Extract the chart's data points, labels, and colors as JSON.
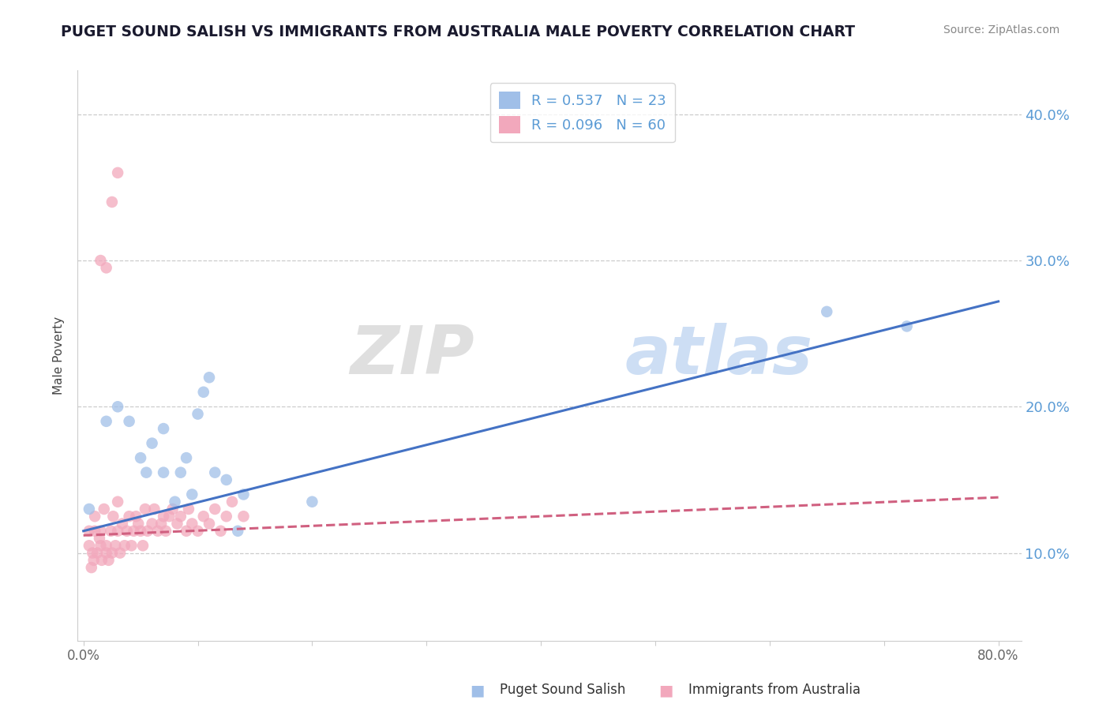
{
  "title": "PUGET SOUND SALISH VS IMMIGRANTS FROM AUSTRALIA MALE POVERTY CORRELATION CHART",
  "source": "Source: ZipAtlas.com",
  "ylabel": "Male Poverty",
  "y_ticks": [
    0.1,
    0.2,
    0.3,
    0.4
  ],
  "y_tick_labels": [
    "10.0%",
    "20.0%",
    "30.0%",
    "40.0%"
  ],
  "xlim": [
    -0.005,
    0.82
  ],
  "ylim": [
    0.04,
    0.43
  ],
  "R_blue": 0.537,
  "N_blue": 23,
  "R_pink": 0.096,
  "N_pink": 60,
  "blue_color": "#a0bfe8",
  "pink_color": "#f2a8bc",
  "blue_line_color": "#4472C4",
  "pink_line_color": "#d06080",
  "watermark_zip": "ZIP",
  "watermark_atlas": "atlas",
  "legend_label_blue": "Puget Sound Salish",
  "legend_label_pink": "Immigrants from Australia",
  "blue_scatter_x": [
    0.005,
    0.02,
    0.03,
    0.04,
    0.05,
    0.055,
    0.06,
    0.07,
    0.07,
    0.08,
    0.085,
    0.09,
    0.095,
    0.1,
    0.105,
    0.11,
    0.115,
    0.125,
    0.135,
    0.14,
    0.2,
    0.65,
    0.72
  ],
  "blue_scatter_y": [
    0.13,
    0.19,
    0.2,
    0.19,
    0.165,
    0.155,
    0.175,
    0.155,
    0.185,
    0.135,
    0.155,
    0.165,
    0.14,
    0.195,
    0.21,
    0.22,
    0.155,
    0.15,
    0.115,
    0.14,
    0.135,
    0.265,
    0.255
  ],
  "pink_scatter_x": [
    0.005,
    0.005,
    0.007,
    0.008,
    0.009,
    0.01,
    0.01,
    0.012,
    0.014,
    0.015,
    0.015,
    0.016,
    0.018,
    0.02,
    0.02,
    0.022,
    0.024,
    0.025,
    0.026,
    0.028,
    0.03,
    0.03,
    0.032,
    0.034,
    0.036,
    0.038,
    0.04,
    0.042,
    0.044,
    0.046,
    0.048,
    0.05,
    0.052,
    0.054,
    0.056,
    0.06,
    0.062,
    0.065,
    0.068,
    0.07,
    0.072,
    0.075,
    0.078,
    0.082,
    0.085,
    0.09,
    0.092,
    0.095,
    0.1,
    0.105,
    0.11,
    0.115,
    0.12,
    0.125,
    0.13,
    0.14,
    0.015,
    0.02,
    0.025,
    0.03
  ],
  "pink_scatter_y": [
    0.105,
    0.115,
    0.09,
    0.1,
    0.095,
    0.115,
    0.125,
    0.1,
    0.11,
    0.105,
    0.115,
    0.095,
    0.13,
    0.1,
    0.105,
    0.095,
    0.115,
    0.1,
    0.125,
    0.105,
    0.115,
    0.135,
    0.1,
    0.12,
    0.105,
    0.115,
    0.125,
    0.105,
    0.115,
    0.125,
    0.12,
    0.115,
    0.105,
    0.13,
    0.115,
    0.12,
    0.13,
    0.115,
    0.12,
    0.125,
    0.115,
    0.125,
    0.13,
    0.12,
    0.125,
    0.115,
    0.13,
    0.12,
    0.115,
    0.125,
    0.12,
    0.13,
    0.115,
    0.125,
    0.135,
    0.125,
    0.3,
    0.295,
    0.34,
    0.36
  ],
  "blue_trend": [
    0.115,
    0.272
  ],
  "pink_trend": [
    0.112,
    0.138
  ]
}
